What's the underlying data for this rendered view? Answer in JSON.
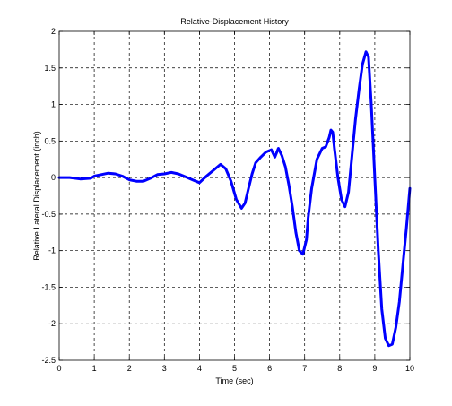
{
  "chart_data": {
    "type": "line",
    "title": "Relative-Displacement History",
    "xlabel": "Time (sec)",
    "ylabel": "Relative Lateral Displacement (inch)",
    "xlim": [
      0,
      10
    ],
    "ylim": [
      -2.5,
      2
    ],
    "xticks": [
      0,
      1,
      2,
      3,
      4,
      5,
      6,
      7,
      8,
      9,
      10
    ],
    "yticks": [
      2,
      1.5,
      1,
      0.5,
      0,
      -0.5,
      -1,
      -1.5,
      -2,
      -2.5
    ],
    "xtick_labels": [
      "0",
      "1",
      "2",
      "3",
      "4",
      "5",
      "6",
      "7",
      "8",
      "9",
      "10"
    ],
    "ytick_labels": [
      "2",
      "1.5",
      "1",
      "0.5",
      "0",
      "-0.5",
      "-1",
      "-1.5",
      "-2",
      "-2.5"
    ],
    "grid": true,
    "line_color": "#0000ff",
    "series": [
      {
        "x": [
          0,
          0.3,
          0.6,
          0.9,
          1.0,
          1.2,
          1.4,
          1.6,
          1.8,
          2.0,
          2.2,
          2.4,
          2.6,
          2.8,
          3.0,
          3.2,
          3.4,
          3.6,
          3.8,
          4.0,
          4.2,
          4.4,
          4.6,
          4.75,
          4.9,
          5.05,
          5.2,
          5.3,
          5.4,
          5.5,
          5.6,
          5.75,
          5.9,
          6.05,
          6.15,
          6.25,
          6.35,
          6.45,
          6.55,
          6.65,
          6.75,
          6.85,
          6.95,
          7.05,
          7.1,
          7.2,
          7.35,
          7.5,
          7.6,
          7.7,
          7.75,
          7.8,
          7.85,
          7.95,
          8.05,
          8.15,
          8.25,
          8.35,
          8.45,
          8.55,
          8.65,
          8.75,
          8.82,
          8.9,
          9.0,
          9.1,
          9.2,
          9.3,
          9.4,
          9.5,
          9.6,
          9.7,
          9.8,
          9.9,
          10.0
        ],
        "y": [
          0,
          0,
          -0.02,
          -0.01,
          0.02,
          0.04,
          0.06,
          0.05,
          0.02,
          -0.03,
          -0.05,
          -0.05,
          -0.01,
          0.04,
          0.05,
          0.07,
          0.05,
          0.01,
          -0.03,
          -0.07,
          0.02,
          0.1,
          0.18,
          0.12,
          -0.05,
          -0.3,
          -0.42,
          -0.35,
          -0.15,
          0.05,
          0.2,
          0.28,
          0.35,
          0.38,
          0.28,
          0.4,
          0.3,
          0.15,
          -0.1,
          -0.4,
          -0.75,
          -1.0,
          -1.05,
          -0.85,
          -0.55,
          -0.15,
          0.25,
          0.4,
          0.42,
          0.55,
          0.65,
          0.62,
          0.4,
          0.0,
          -0.3,
          -0.4,
          -0.2,
          0.3,
          0.8,
          1.2,
          1.55,
          1.72,
          1.65,
          1.0,
          0.0,
          -1.0,
          -1.8,
          -2.2,
          -2.3,
          -2.28,
          -2.05,
          -1.7,
          -1.2,
          -0.7,
          -0.15
        ]
      }
    ]
  }
}
